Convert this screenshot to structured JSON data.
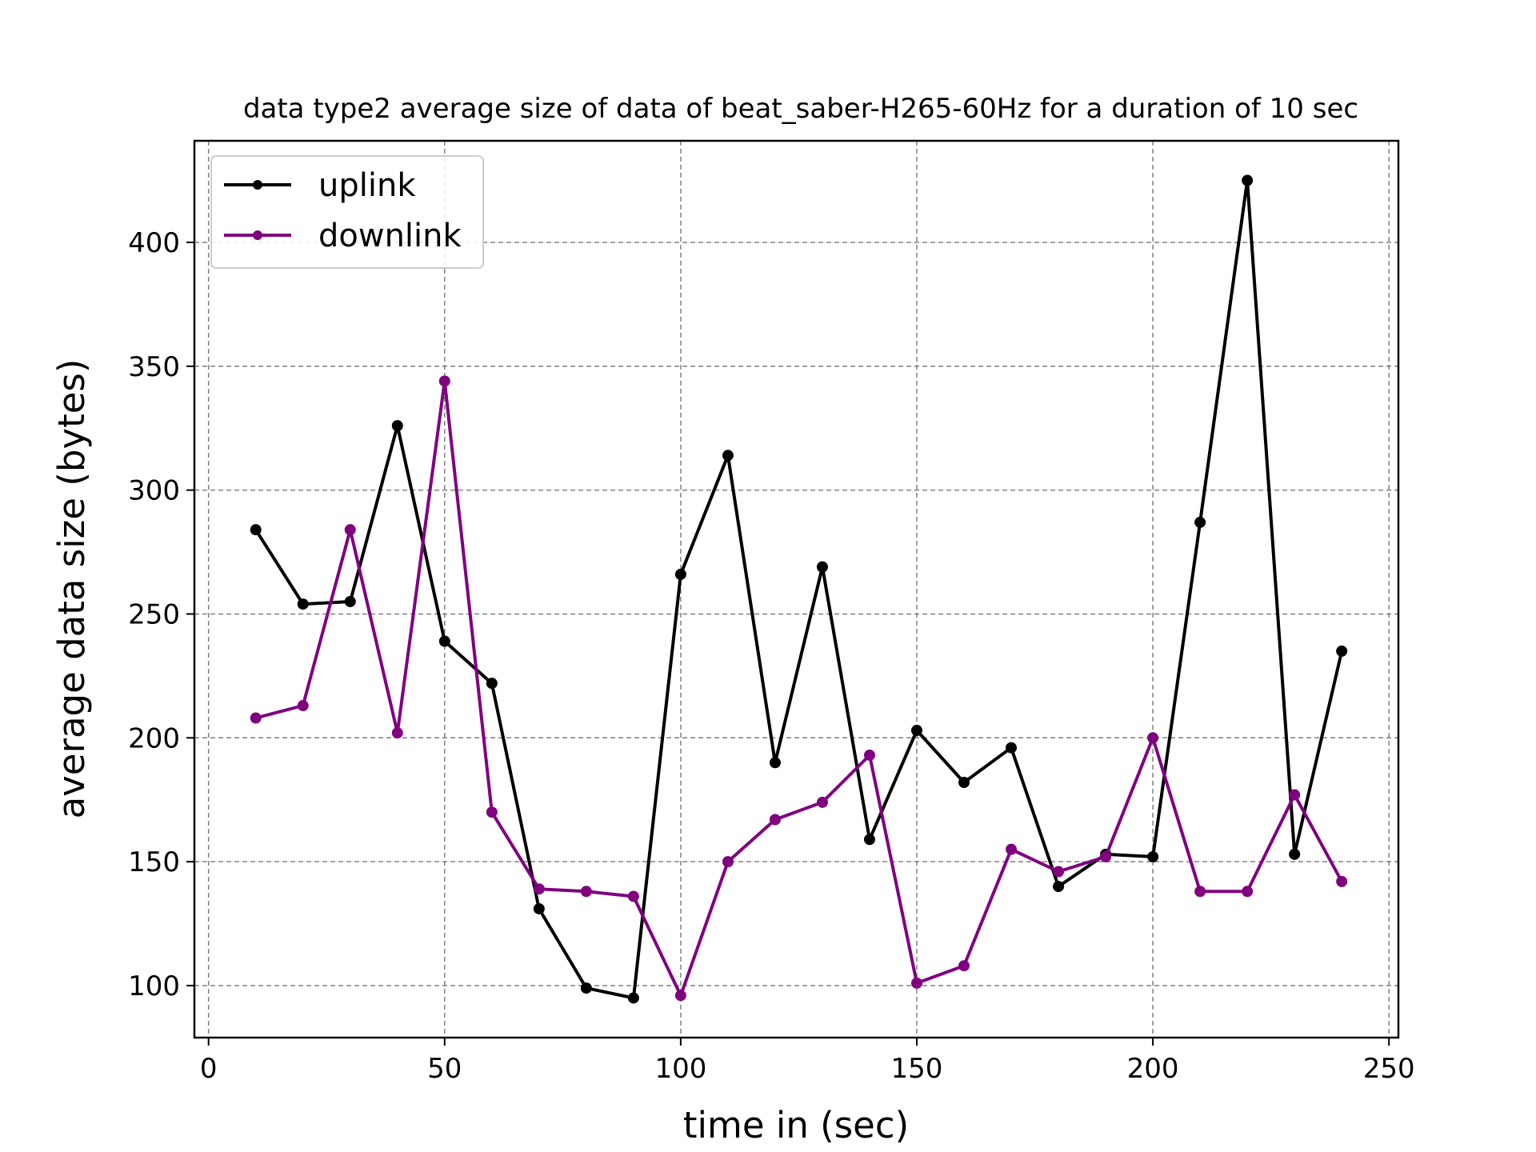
{
  "chart_data": {
    "type": "line",
    "title": "data type2 average size of data of beat_saber-H265-60Hz for a duration of 10 sec",
    "xlabel": "time in (sec)",
    "ylabel": "average data size (bytes)",
    "xlim": [
      -3,
      252
    ],
    "ylim": [
      79,
      441
    ],
    "xticks": [
      0,
      50,
      100,
      150,
      200,
      250
    ],
    "yticks": [
      100,
      150,
      200,
      250,
      300,
      350,
      400
    ],
    "grid": true,
    "legend_position": "top-left",
    "x": [
      10,
      20,
      30,
      40,
      50,
      60,
      70,
      80,
      90,
      100,
      110,
      120,
      130,
      140,
      150,
      160,
      170,
      180,
      190,
      200,
      210,
      220,
      230,
      240
    ],
    "series": [
      {
        "name": "uplink",
        "color": "#000000",
        "values": [
          284,
          254,
          255,
          326,
          239,
          222,
          131,
          99,
          95,
          266,
          314,
          190,
          269,
          159,
          203,
          182,
          196,
          140,
          153,
          152,
          287,
          425,
          153,
          235
        ]
      },
      {
        "name": "downlink",
        "color": "#800080",
        "values": [
          208,
          213,
          284,
          202,
          344,
          170,
          139,
          138,
          136,
          96,
          150,
          167,
          174,
          193,
          101,
          108,
          155,
          146,
          152,
          200,
          138,
          138,
          177,
          142
        ]
      }
    ]
  }
}
